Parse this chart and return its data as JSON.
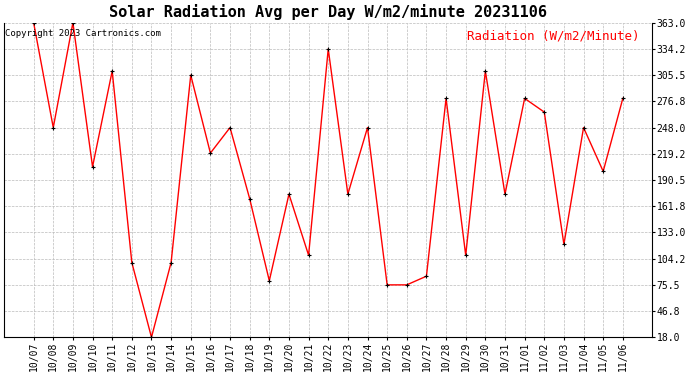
{
  "title": "Solar Radiation Avg per Day W/m2/minute 20231106",
  "copyright": "Copyright 2023 Cartronics.com",
  "legend_label": "Radiation (W/m2/Minute)",
  "dates": [
    "10/07",
    "10/08",
    "10/09",
    "10/10",
    "10/11",
    "10/12",
    "10/13",
    "10/14",
    "10/15",
    "10/16",
    "10/17",
    "10/18",
    "10/19",
    "10/20",
    "10/21",
    "10/22",
    "10/23",
    "10/24",
    "10/25",
    "10/26",
    "10/27",
    "10/28",
    "10/29",
    "10/30",
    "10/31",
    "11/01",
    "11/02",
    "11/03",
    "11/04",
    "11/05",
    "11/06"
  ],
  "values": [
    363.0,
    248.0,
    363.0,
    205.0,
    310.0,
    100.0,
    18.0,
    100.0,
    305.5,
    220.0,
    248.0,
    170.0,
    80.0,
    175.0,
    108.0,
    334.2,
    175.0,
    248.0,
    75.5,
    75.5,
    85.0,
    280.0,
    108.0,
    310.0,
    175.0,
    280.0,
    265.0,
    120.0,
    248.0,
    200.0,
    280.0
  ],
  "line_color": "red",
  "marker_color": "black",
  "bg_color": "#ffffff",
  "grid_color": "#bbbbbb",
  "ylim_min": 18.0,
  "ylim_max": 363.0,
  "yticks": [
    18.0,
    46.8,
    75.5,
    104.2,
    133.0,
    161.8,
    190.5,
    219.2,
    248.0,
    276.8,
    305.5,
    334.2,
    363.0
  ],
  "title_fontsize": 11,
  "copyright_fontsize": 6.5,
  "legend_fontsize": 9,
  "tick_fontsize": 7,
  "figwidth": 6.9,
  "figheight": 3.75,
  "dpi": 100
}
